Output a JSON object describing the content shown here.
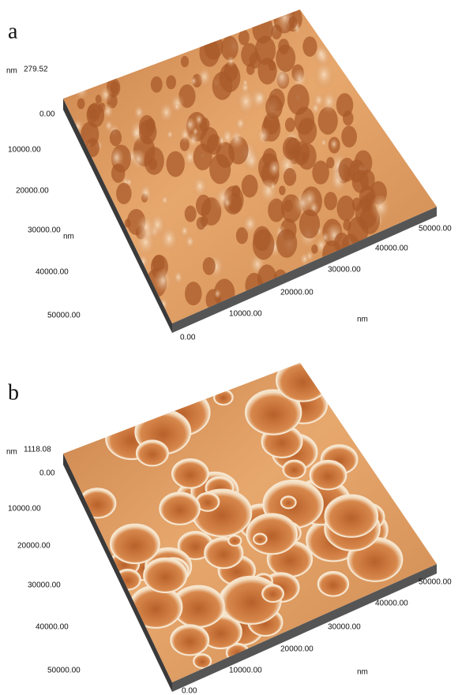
{
  "panels": [
    {
      "label": "a",
      "z_unit": "nm",
      "z_max": "279.52",
      "z_zero": "0.00",
      "left_ticks": [
        "10000.00",
        "20000.00",
        "30000.00",
        "40000.00",
        "50000.00"
      ],
      "left_unit": "nm",
      "origin": "0.00",
      "right_ticks": [
        "10000.00",
        "20000.00",
        "30000.00",
        "40000.00",
        "50000.00"
      ],
      "right_unit": "nm"
    },
    {
      "label": "b",
      "z_unit": "nm",
      "z_max": "1118.08",
      "z_zero": "0.00",
      "left_ticks": [
        "10000.00",
        "20000.00",
        "30000.00",
        "40000.00",
        "50000.00"
      ],
      "origin": "0.00",
      "right_ticks": [
        "10000.00",
        "20000.00",
        "30000.00",
        "40000.00",
        "50000.00"
      ],
      "right_unit": "nm"
    }
  ]
}
